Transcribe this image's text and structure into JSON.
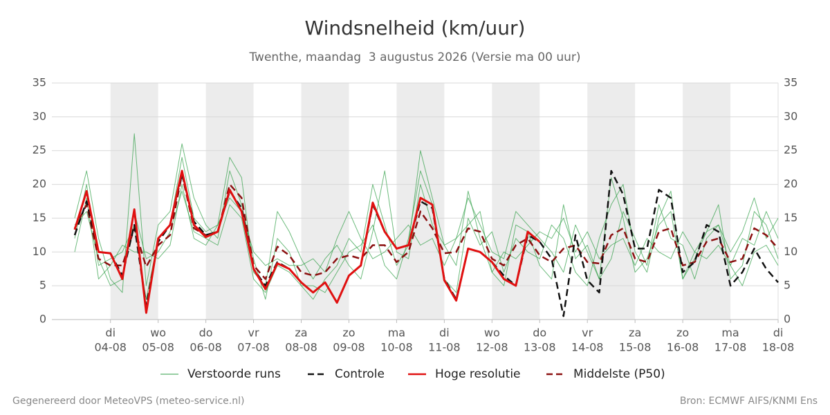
{
  "chart_data": {
    "type": "line",
    "title": "Windsnelheid (km/uur)",
    "subtitle": "Twenthe, maandag  3 augustus 2026 (Versie ma 00 uur)",
    "categories": [
      null,
      null,
      null,
      [
        "di",
        "04-08"
      ],
      null,
      null,
      null,
      [
        "wo",
        "05-08"
      ],
      null,
      null,
      null,
      [
        "do",
        "06-08"
      ],
      null,
      null,
      null,
      [
        "vr",
        "07-08"
      ],
      null,
      null,
      null,
      [
        "za",
        "08-08"
      ],
      null,
      null,
      null,
      [
        "zo",
        "09-08"
      ],
      null,
      null,
      null,
      [
        "ma",
        "10-08"
      ],
      null,
      null,
      null,
      [
        "di",
        "11-08"
      ],
      null,
      null,
      null,
      [
        "wo",
        "12-08"
      ],
      null,
      null,
      null,
      [
        "do",
        "13-08"
      ],
      null,
      null,
      null,
      [
        "vr",
        "14-08"
      ],
      null,
      null,
      null,
      [
        "za",
        "15-08"
      ],
      null,
      null,
      null,
      [
        "zo",
        "16-08"
      ],
      null,
      null,
      null,
      [
        "ma",
        "17-08"
      ],
      null,
      null,
      null,
      [
        "di",
        "18-08"
      ]
    ],
    "ylim": [
      0,
      35
    ],
    "yticks": [
      0,
      5,
      10,
      15,
      20,
      25,
      30,
      35
    ],
    "y2lim": [
      0,
      35
    ],
    "y2ticks": [
      0,
      5,
      10,
      15,
      20,
      25,
      30,
      35
    ],
    "grid": true,
    "legend": "bottom",
    "series": [
      {
        "name": "Verstoorde runs",
        "color": "#2e9e44",
        "members": [
          [
            15,
            22,
            12,
            6,
            4,
            27.5,
            5,
            14,
            16,
            26,
            18,
            14,
            12,
            22,
            17,
            9,
            3,
            12,
            10,
            5,
            3,
            6,
            8,
            12,
            10,
            20,
            14,
            8,
            11,
            25,
            18,
            11,
            8,
            19,
            12,
            7,
            5,
            14,
            13,
            8,
            6,
            17,
            9,
            11,
            6,
            21,
            15,
            7,
            9,
            14,
            16,
            6,
            10,
            13,
            17,
            6,
            8,
            16,
            14,
            9
          ],
          [
            12,
            20,
            8,
            9,
            10,
            14,
            3,
            12,
            14,
            24,
            15,
            13,
            14,
            24,
            21,
            7,
            5,
            16,
            13,
            9,
            6,
            9,
            11,
            8,
            6,
            13,
            22,
            10,
            9,
            20,
            14,
            11,
            12,
            18,
            14,
            10,
            9,
            16,
            14,
            12,
            10,
            7,
            14,
            10,
            6,
            9,
            16,
            12,
            8,
            17,
            12,
            11,
            6,
            12,
            14,
            10,
            13,
            18,
            12,
            15
          ],
          [
            10,
            18,
            6,
            8,
            11,
            10,
            10,
            9,
            11,
            20,
            12,
            11,
            14,
            18,
            16,
            10,
            8,
            9,
            8,
            8,
            9,
            7,
            12,
            16,
            12,
            9,
            10,
            12,
            14,
            11,
            12,
            8,
            12,
            14,
            16,
            7,
            10,
            9,
            11,
            13,
            12,
            15,
            10,
            13,
            9,
            11,
            12,
            8,
            12,
            10,
            9,
            13,
            10,
            9,
            11,
            8,
            12,
            11,
            16,
            12
          ],
          [
            14,
            16,
            9,
            5,
            6,
            16,
            9,
            10,
            13,
            19,
            13,
            12,
            11,
            17,
            15,
            6,
            4,
            8,
            7,
            5,
            5,
            4,
            7,
            10,
            11,
            14,
            8,
            6,
            12,
            22,
            17,
            6,
            4,
            15,
            11,
            13,
            7,
            12,
            10,
            9,
            14,
            12,
            7,
            5,
            12,
            17,
            20,
            10,
            7,
            15,
            19,
            6,
            9,
            13,
            14,
            8,
            5,
            10,
            11,
            8
          ]
        ]
      },
      {
        "name": "Controle",
        "color": "#111111",
        "dashed": true,
        "values": [
          12.5,
          17.5,
          10,
          9.8,
          6.5,
          14,
          2,
          11.5,
          14,
          21.5,
          14.5,
          12.5,
          13,
          19,
          16.5,
          7.5,
          5,
          8.5,
          7.5,
          5.5,
          4,
          5.5,
          2.5,
          6.5,
          8,
          17,
          13,
          10.5,
          11,
          17.5,
          16.5,
          6,
          3,
          10.5,
          10,
          8.5,
          6.5,
          5,
          12.5,
          11.5,
          9,
          0.5,
          12.5,
          5.8,
          4,
          22,
          18.5,
          10.5,
          10.5,
          19.2,
          18,
          7,
          8.5,
          14,
          13,
          5,
          7,
          10.5,
          7.5,
          5.5
        ]
      },
      {
        "name": "Hoge resolutie",
        "color": "#e01010",
        "values": [
          13.3,
          19,
          10,
          9.8,
          6,
          16.3,
          1,
          12,
          14,
          22,
          14,
          12.2,
          13,
          19.2,
          16,
          7.5,
          4.5,
          8.3,
          7.5,
          5.5,
          4,
          5.5,
          2.5,
          6.5,
          8,
          17.3,
          13,
          10.5,
          11,
          18,
          17,
          5.8,
          2.8,
          10.5,
          10,
          8.5,
          6,
          5,
          13,
          11.5,
          null,
          null,
          null,
          null,
          null,
          null,
          null,
          null,
          null,
          null,
          null,
          null,
          null,
          null,
          null,
          null,
          null,
          null,
          null,
          null
        ]
      },
      {
        "name": "Middelste (P50)",
        "color": "#8b1010",
        "dashed": true,
        "values": [
          13.5,
          17,
          9,
          8,
          8,
          13.5,
          7.8,
          11,
          12.5,
          21.5,
          13.5,
          12.5,
          13,
          20,
          18,
          8,
          6,
          10.8,
          9.5,
          7,
          6.5,
          7,
          9,
          9.5,
          9,
          11,
          11,
          8.5,
          10,
          16,
          13.5,
          9.8,
          10,
          13.5,
          13,
          9,
          8,
          11,
          12,
          9.5,
          8.5,
          10.5,
          11,
          8.5,
          8.3,
          12.5,
          13.5,
          9,
          8.5,
          13,
          13.5,
          8,
          8.5,
          11.5,
          12,
          8.5,
          9,
          13.5,
          12.5,
          10.5
        ]
      }
    ]
  },
  "footer": {
    "left": "Gegenereerd door MeteoVPS (meteo-service.nl)",
    "right": "Bron: ECMWF AIFS/KNMI Ens"
  }
}
